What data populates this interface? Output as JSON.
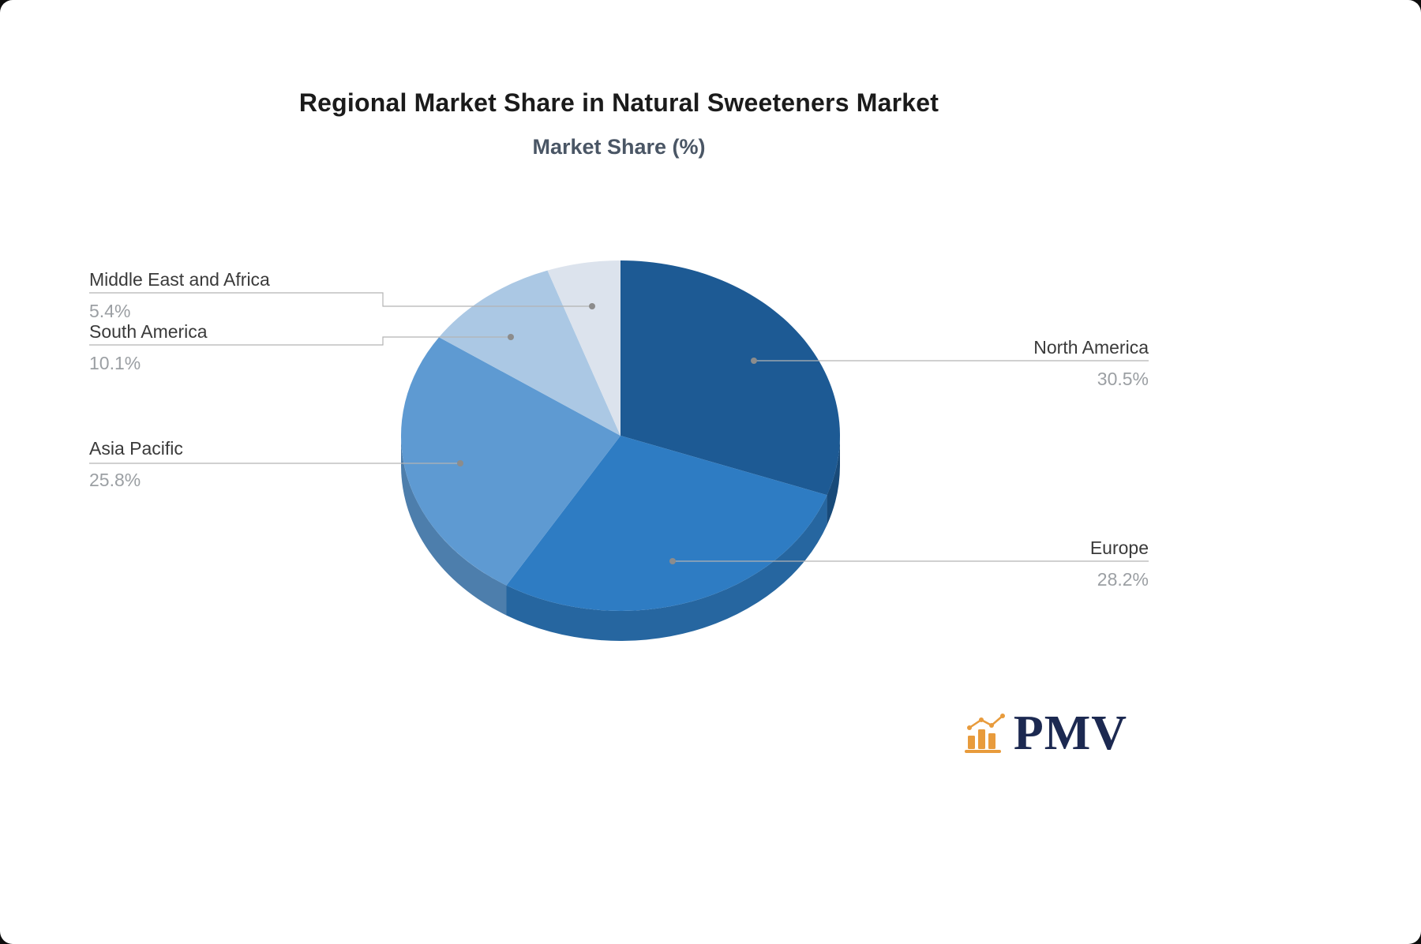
{
  "chart": {
    "title": "Regional Market Share in Natural Sweeteners Market",
    "subtitle": "Market Share (%)"
  },
  "chart_data": {
    "type": "pie",
    "style": "3d",
    "title": "Regional Market Share in Natural Sweeteners Market",
    "subtitle": "Market Share (%)",
    "unit": "%",
    "legend_position": "none",
    "points": [
      {
        "label": "North America",
        "value": 30.5,
        "display": "30.5%",
        "color": "#1d5a94"
      },
      {
        "label": "Europe",
        "value": 28.2,
        "display": "28.2%",
        "color": "#2e7cc3"
      },
      {
        "label": "Asia Pacific",
        "value": 25.8,
        "display": "25.8%",
        "color": "#5e9ad2"
      },
      {
        "label": "South America",
        "value": 10.1,
        "display": "10.1%",
        "color": "#abc8e4"
      },
      {
        "label": "Middle East and Africa",
        "value": 5.4,
        "display": "5.4%",
        "color": "#dce3ed"
      }
    ]
  },
  "branding": {
    "logo_text": "PMV",
    "logo_color": "#1c2951",
    "icon_color": "#e89b3c"
  }
}
